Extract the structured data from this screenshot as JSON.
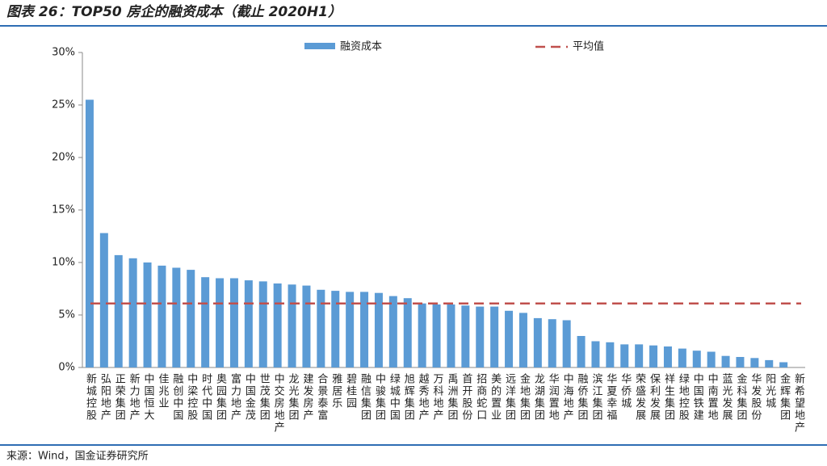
{
  "chart_data": {
    "type": "bar",
    "title": "图表 26：TOP50 房企的融资成本（截止 2020H1）",
    "source": "来源：Wind，国金证券研究所",
    "categories": [
      "新城控股",
      "弘阳地产",
      "正荣集团",
      "新力地产",
      "中国恒大",
      "佳兆业",
      "融创中国",
      "中梁控股",
      "时代中国",
      "奥园集团",
      "富力地产",
      "中国金茂",
      "世茂集团",
      "中交房地产",
      "龙光集团",
      "建发房产",
      "合景泰富",
      "雅居乐",
      "碧桂园",
      "融信集团",
      "中骏集团",
      "绿城中国",
      "旭辉集团",
      "越秀地产",
      "万科地产",
      "禹洲集团",
      "首开股份",
      "招商蛇口",
      "美的置业",
      "远洋集团",
      "金地集团",
      "龙湖集团",
      "华润置地",
      "中海地产",
      "融侨集团",
      "滨江集团",
      "华夏幸福",
      "华侨城",
      "荣盛发展",
      "保利发展",
      "祥生集团",
      "绿地控股",
      "中国铁建",
      "中南置地",
      "蓝光发展",
      "金科集团",
      "华发股份",
      "阳光城",
      "金辉集团",
      "新希望地产"
    ],
    "series": [
      {
        "name": "融资成本",
        "color": "#5B9BD5",
        "values": [
          25.5,
          12.8,
          10.7,
          10.4,
          10.0,
          9.7,
          9.5,
          9.3,
          8.6,
          8.5,
          8.5,
          8.3,
          8.2,
          8.0,
          7.9,
          7.8,
          7.4,
          7.3,
          7.2,
          7.2,
          7.1,
          6.8,
          6.6,
          6.1,
          6.0,
          6.0,
          5.9,
          5.8,
          5.8,
          5.4,
          5.2,
          4.7,
          4.6,
          4.5,
          3.0,
          2.5,
          2.4,
          2.2,
          2.2,
          2.1,
          2.0,
          1.8,
          1.6,
          1.5,
          1.1,
          1.0,
          0.9,
          0.7,
          0.5,
          0
        ]
      }
    ],
    "average": {
      "name": "平均值",
      "color": "#C0504D",
      "value": 6.1
    },
    "ylim": [
      0,
      30
    ],
    "yticks": [
      {
        "value": 0,
        "label": "0%"
      },
      {
        "value": 5,
        "label": "5%"
      },
      {
        "value": 10,
        "label": "10%"
      },
      {
        "value": 15,
        "label": "15%"
      },
      {
        "value": 20,
        "label": "20%"
      },
      {
        "value": 25,
        "label": "25%"
      },
      {
        "value": 30,
        "label": "30%"
      }
    ]
  }
}
